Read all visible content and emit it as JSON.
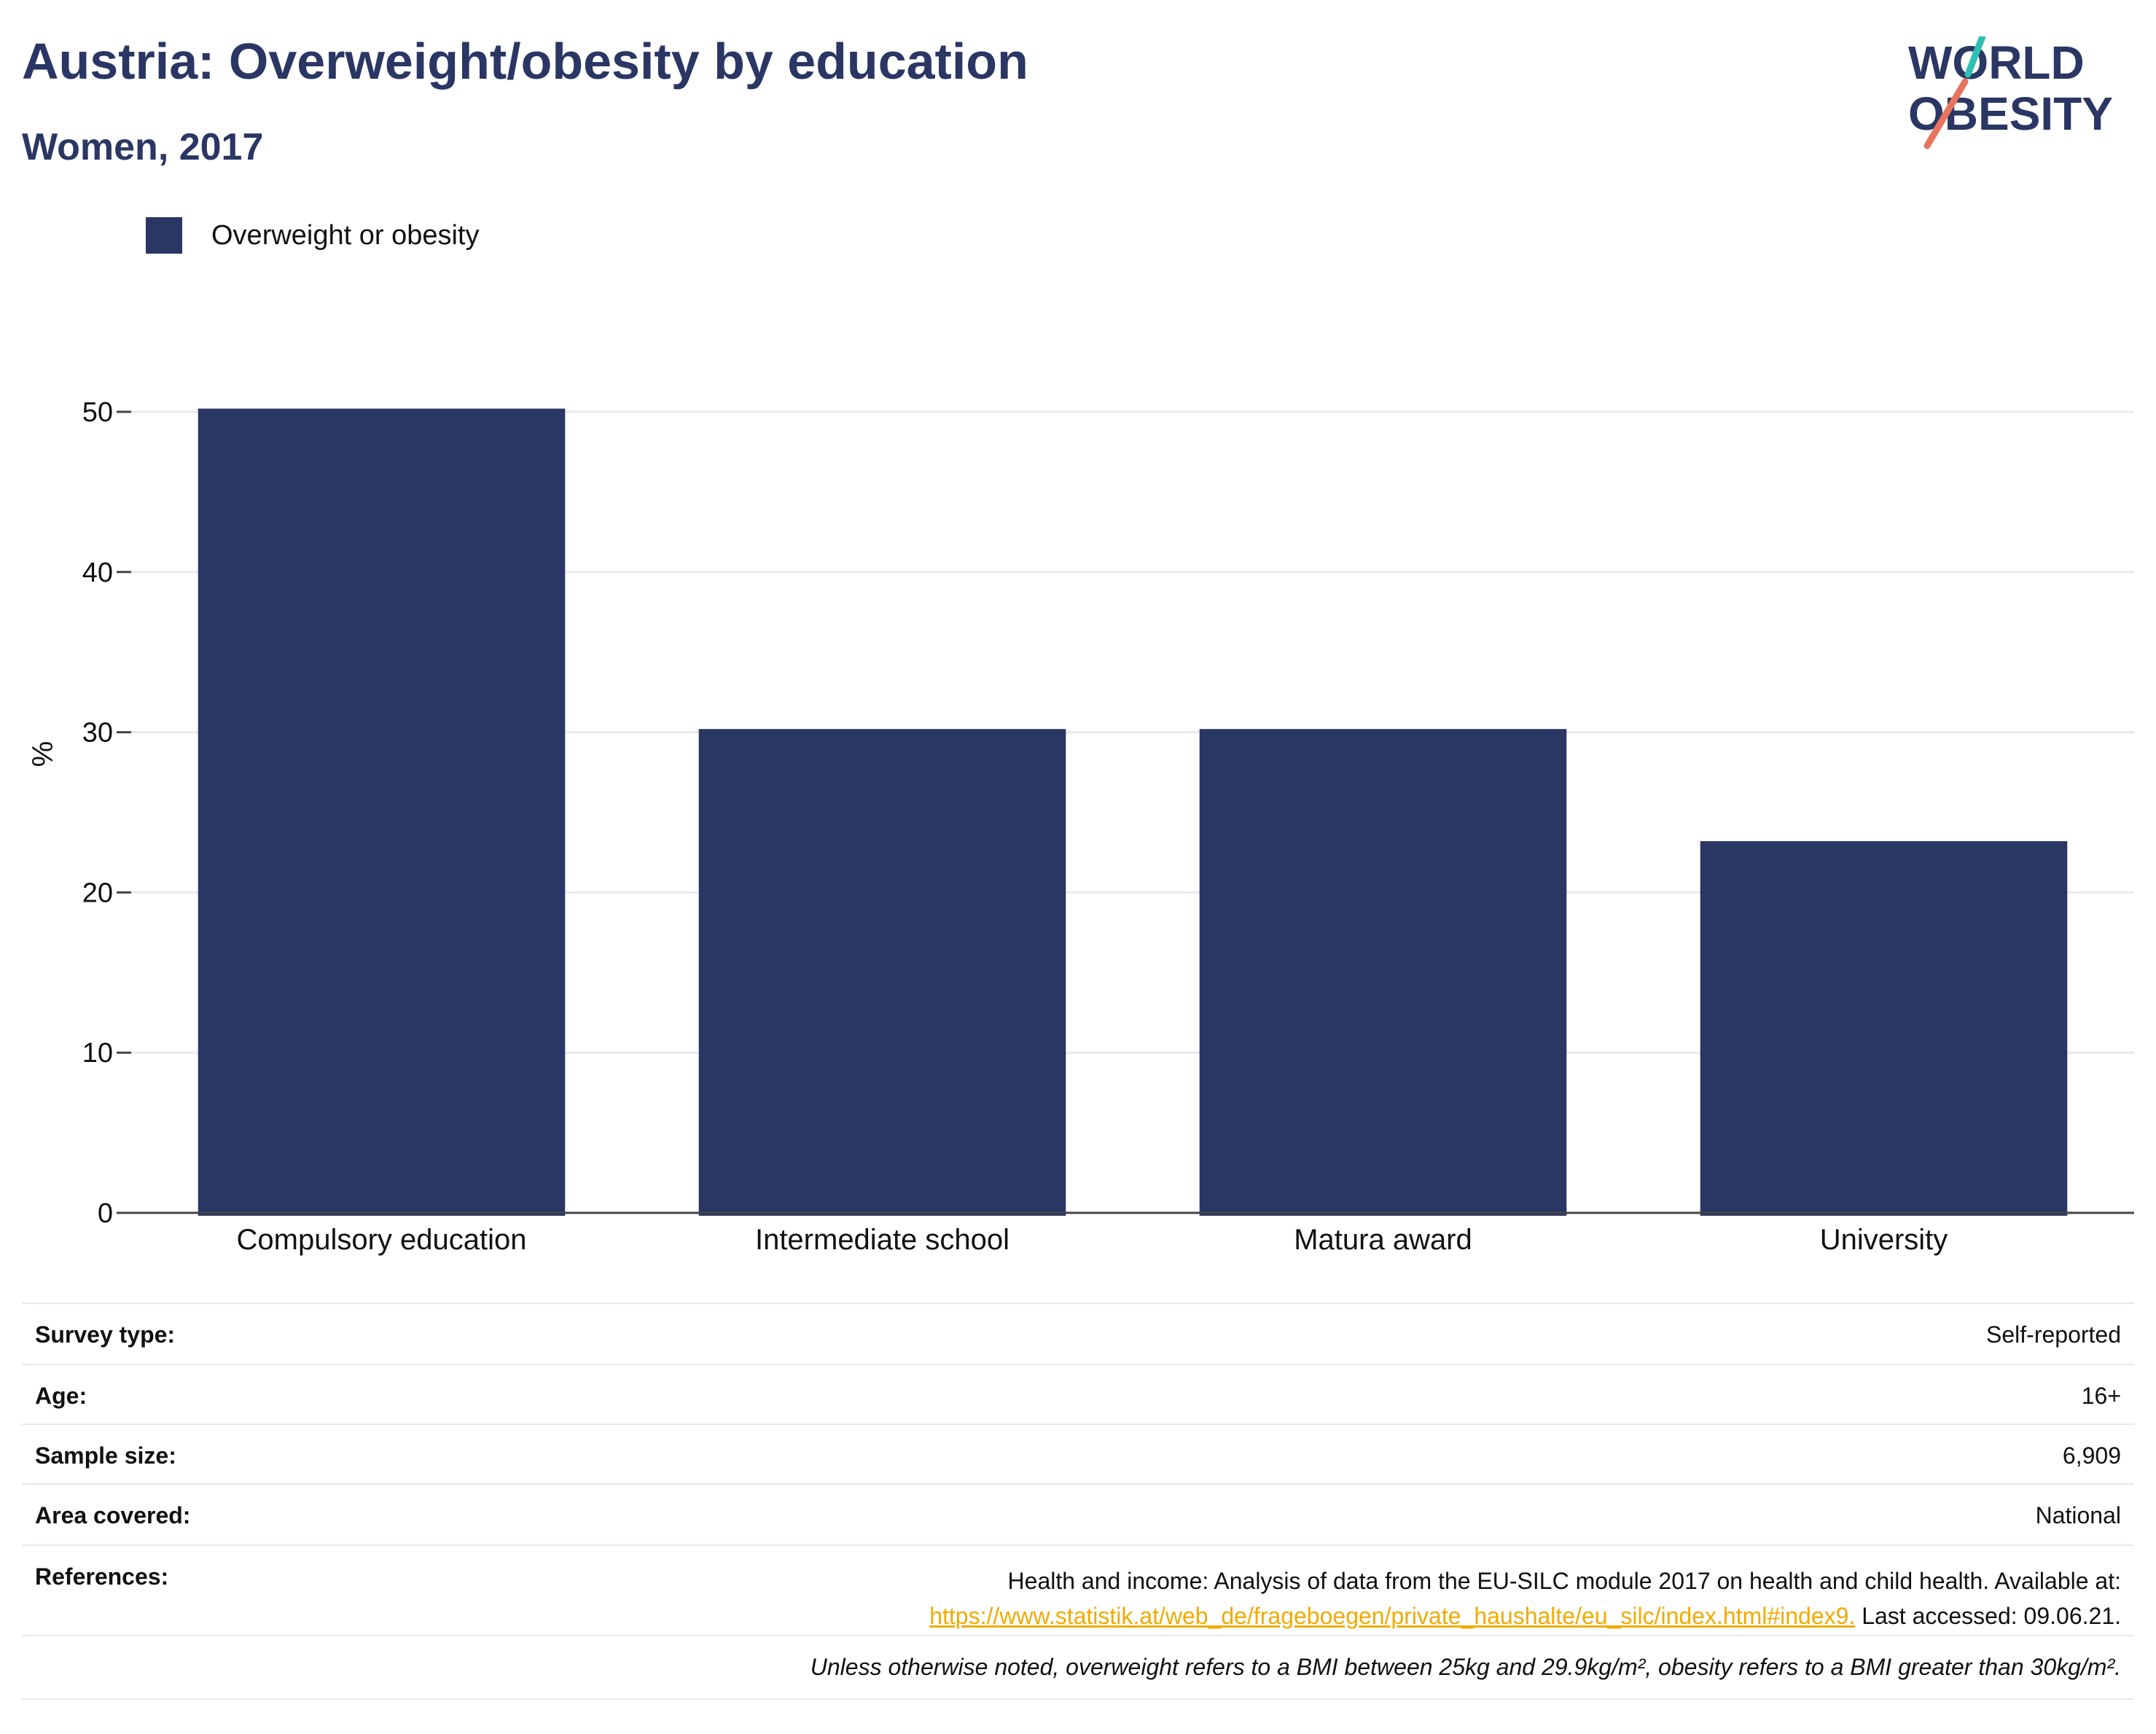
{
  "header": {
    "title": "Austria: Overweight/obesity by education",
    "subtitle": "Women, 2017"
  },
  "logo": {
    "line1": "WORLD",
    "line2": "OBESITY"
  },
  "colors": {
    "bar": "#2a3663",
    "text_heading": "#2a3663",
    "link": "#f0ab00",
    "logo_teal": "#2fbfb4",
    "logo_coral": "#e8745e"
  },
  "chart_data": {
    "type": "bar",
    "title": "Austria: Overweight/obesity by education",
    "subtitle": "Women, 2017",
    "categories": [
      "Compulsory education",
      "Intermediate school",
      "Matura award",
      "University"
    ],
    "series": [
      {
        "name": "Overweight or obesity",
        "values": [
          50.2,
          30.2,
          30.2,
          23.2
        ]
      }
    ],
    "xlabel": "",
    "ylabel": "%",
    "ylim": [
      0,
      50
    ],
    "yticks": [
      0,
      10,
      20,
      30,
      40,
      50
    ],
    "grid": true,
    "legend_position": "top-left"
  },
  "meta": {
    "rows": [
      {
        "key": "Survey type:",
        "value": "Self-reported"
      },
      {
        "key": "Age:",
        "value": "16+"
      },
      {
        "key": "Sample size:",
        "value": "6,909"
      },
      {
        "key": "Area covered:",
        "value": "National"
      }
    ],
    "references": {
      "key": "References:",
      "text": "Health and income: Analysis of data from the EU-SILC module 2017 on health and child health. Available at:",
      "link": "https://www.statistik.at/web_de/frageboegen/private_haushalte/eu_silc/index.html#index9.",
      "accessed": " Last accessed: 09.06.21."
    },
    "note": "Unless otherwise noted, overweight refers to a BMI between 25kg and 29.9kg/m², obesity refers to a BMI greater than 30kg/m²."
  }
}
